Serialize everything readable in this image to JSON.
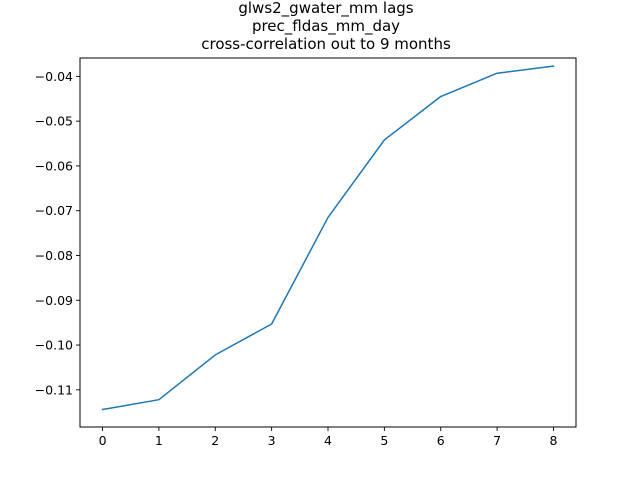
{
  "chart_data": {
    "type": "line",
    "title_lines": [
      "glws2_gwater_mm lags",
      "prec_fldas_mm_day",
      "cross-correlation out to 9 months"
    ],
    "xlabel": "",
    "ylabel": "",
    "x": [
      0,
      1,
      2,
      3,
      4,
      5,
      6,
      7,
      8
    ],
    "series": [
      {
        "values": [
          -0.1144,
          -0.1122,
          -0.1022,
          -0.0953,
          -0.0715,
          -0.0542,
          -0.0445,
          -0.0393,
          -0.0377
        ]
      }
    ],
    "xlim": [
      -0.4,
      8.4
    ],
    "ylim": [
      -0.1183,
      -0.0359
    ],
    "xticks": [
      0,
      1,
      2,
      3,
      4,
      5,
      6,
      7,
      8
    ],
    "xtick_labels": [
      "0",
      "1",
      "2",
      "3",
      "4",
      "5",
      "6",
      "7",
      "8"
    ],
    "yticks": [
      -0.11,
      -0.1,
      -0.09,
      -0.08,
      -0.07,
      -0.06,
      -0.05,
      -0.04
    ],
    "ytick_labels": [
      "−0.11",
      "−0.10",
      "−0.09",
      "−0.08",
      "−0.07",
      "−0.06",
      "−0.05",
      "−0.04"
    ],
    "grid": false,
    "line_color": "#1f77b4"
  }
}
